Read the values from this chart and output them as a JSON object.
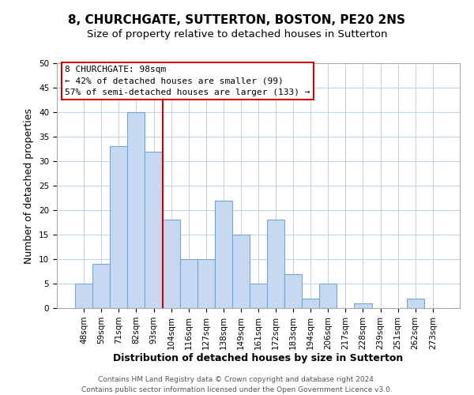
{
  "title": "8, CHURCHGATE, SUTTERTON, BOSTON, PE20 2NS",
  "subtitle": "Size of property relative to detached houses in Sutterton",
  "xlabel": "Distribution of detached houses by size in Sutterton",
  "ylabel": "Number of detached properties",
  "bar_labels": [
    "48sqm",
    "59sqm",
    "71sqm",
    "82sqm",
    "93sqm",
    "104sqm",
    "116sqm",
    "127sqm",
    "138sqm",
    "149sqm",
    "161sqm",
    "172sqm",
    "183sqm",
    "194sqm",
    "206sqm",
    "217sqm",
    "228sqm",
    "239sqm",
    "251sqm",
    "262sqm",
    "273sqm"
  ],
  "bar_heights": [
    5,
    9,
    33,
    40,
    32,
    18,
    10,
    10,
    22,
    15,
    5,
    18,
    7,
    2,
    5,
    0,
    1,
    0,
    0,
    2,
    0
  ],
  "bar_color": "#c6d9f0",
  "bar_edge_color": "#6fa8d6",
  "vline_x": 4.5,
  "vline_color": "#cc0000",
  "ylim": [
    0,
    50
  ],
  "yticks": [
    0,
    5,
    10,
    15,
    20,
    25,
    30,
    35,
    40,
    45,
    50
  ],
  "annotation_title": "8 CHURCHGATE: 98sqm",
  "annotation_line1": "← 42% of detached houses are smaller (99)",
  "annotation_line2": "57% of semi-detached houses are larger (133) →",
  "footer_line1": "Contains HM Land Registry data © Crown copyright and database right 2024.",
  "footer_line2": "Contains public sector information licensed under the Open Government Licence v3.0.",
  "title_fontsize": 11,
  "subtitle_fontsize": 9.5,
  "axis_label_fontsize": 9,
  "tick_fontsize": 7.5,
  "annotation_fontsize": 8,
  "footer_fontsize": 6.5,
  "background_color": "#ffffff",
  "grid_color": "#c0d0e8",
  "spine_color": "#aaaaaa"
}
